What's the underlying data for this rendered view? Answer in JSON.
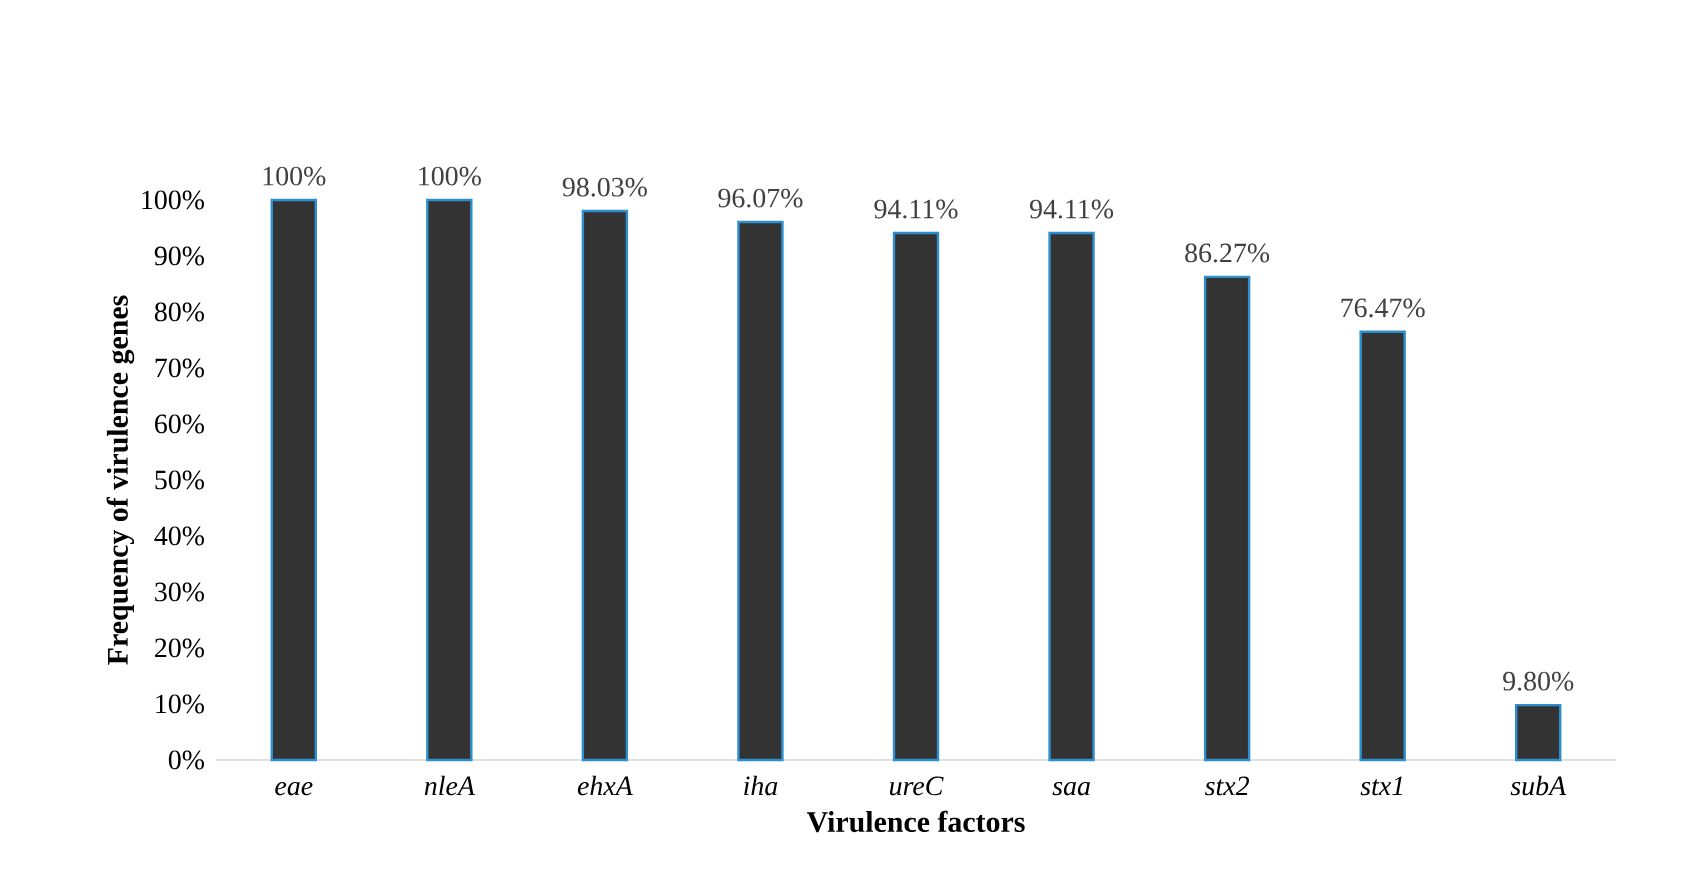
{
  "chart_data": {
    "type": "bar",
    "xlabel": "Virulence factors",
    "ylabel": "Frequency of virulence genes",
    "categories": [
      "eae",
      "nleA",
      "ehxA",
      "iha",
      "ureC",
      "saa",
      "stx2",
      "stx1",
      "subA"
    ],
    "values": [
      100,
      100,
      98.03,
      96.07,
      94.11,
      94.11,
      86.27,
      76.47,
      9.8
    ],
    "value_labels": [
      "100%",
      "100%",
      "98.03%",
      "96.07%",
      "94.11%",
      "94.11%",
      "86.27%",
      "76.47%",
      "9.80%"
    ],
    "color": "#333333",
    "ylim": [
      0,
      100
    ],
    "yticks": [
      {
        "value": 0,
        "label": "0%"
      },
      {
        "value": 10,
        "label": "10%"
      },
      {
        "value": 20,
        "label": "20%"
      },
      {
        "value": 30,
        "label": "30%"
      },
      {
        "value": 40,
        "label": "40%"
      },
      {
        "value": 50,
        "label": "50%"
      },
      {
        "value": 60,
        "label": "60%"
      },
      {
        "value": 70,
        "label": "70%"
      },
      {
        "value": 80,
        "label": "80%"
      },
      {
        "value": 90,
        "label": "90%"
      },
      {
        "value": 100,
        "label": "100%"
      }
    ]
  }
}
